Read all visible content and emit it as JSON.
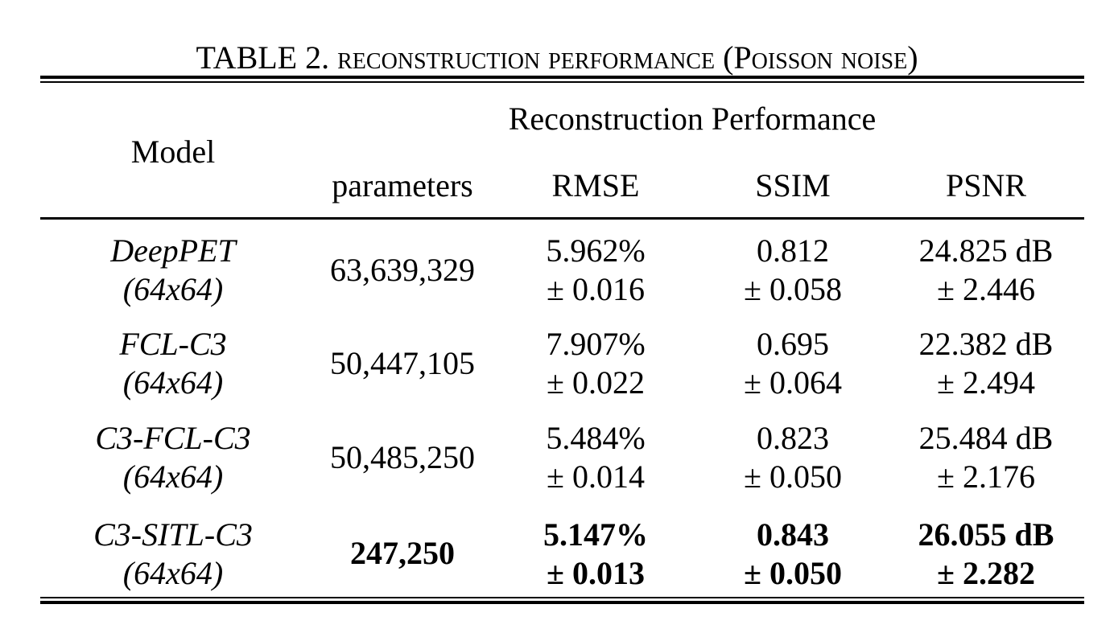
{
  "caption": {
    "prefix": "TABLE 2.",
    "body": "reconstruction performance (Poisson noise)"
  },
  "header": {
    "model": "Model",
    "group": "Reconstruction Performance",
    "parameters": "parameters",
    "rmse": "RMSE",
    "ssim": "SSIM",
    "psnr": "PSNR"
  },
  "rows": [
    {
      "model": "DeepPET",
      "size": "(64x64)",
      "parameters": "63,639,329",
      "rmse": "5.962%",
      "rmse_sd": "± 0.016",
      "ssim": "0.812",
      "ssim_sd": "± 0.058",
      "psnr": "24.825 dB",
      "psnr_sd": "± 2.446"
    },
    {
      "model": "FCL-C3",
      "size": "(64x64)",
      "parameters": "50,447,105",
      "rmse": "7.907%",
      "rmse_sd": "± 0.022",
      "ssim": "0.695",
      "ssim_sd": "± 0.064",
      "psnr": "22.382 dB",
      "psnr_sd": "± 2.494"
    },
    {
      "model": "C3-FCL-C3",
      "size": "(64x64)",
      "parameters": "50,485,250",
      "rmse": "5.484%",
      "rmse_sd": "± 0.014",
      "ssim": "0.823",
      "ssim_sd": "± 0.050",
      "psnr": "25.484 dB",
      "psnr_sd": "± 2.176"
    },
    {
      "model": "C3-SITL-C3",
      "size": "(64x64)",
      "parameters": "247,250",
      "rmse": "5.147%",
      "rmse_sd": "± 0.013",
      "ssim": "0.843",
      "ssim_sd": "± 0.050",
      "psnr": "26.055 dB",
      "psnr_sd": "± 2.282"
    }
  ]
}
